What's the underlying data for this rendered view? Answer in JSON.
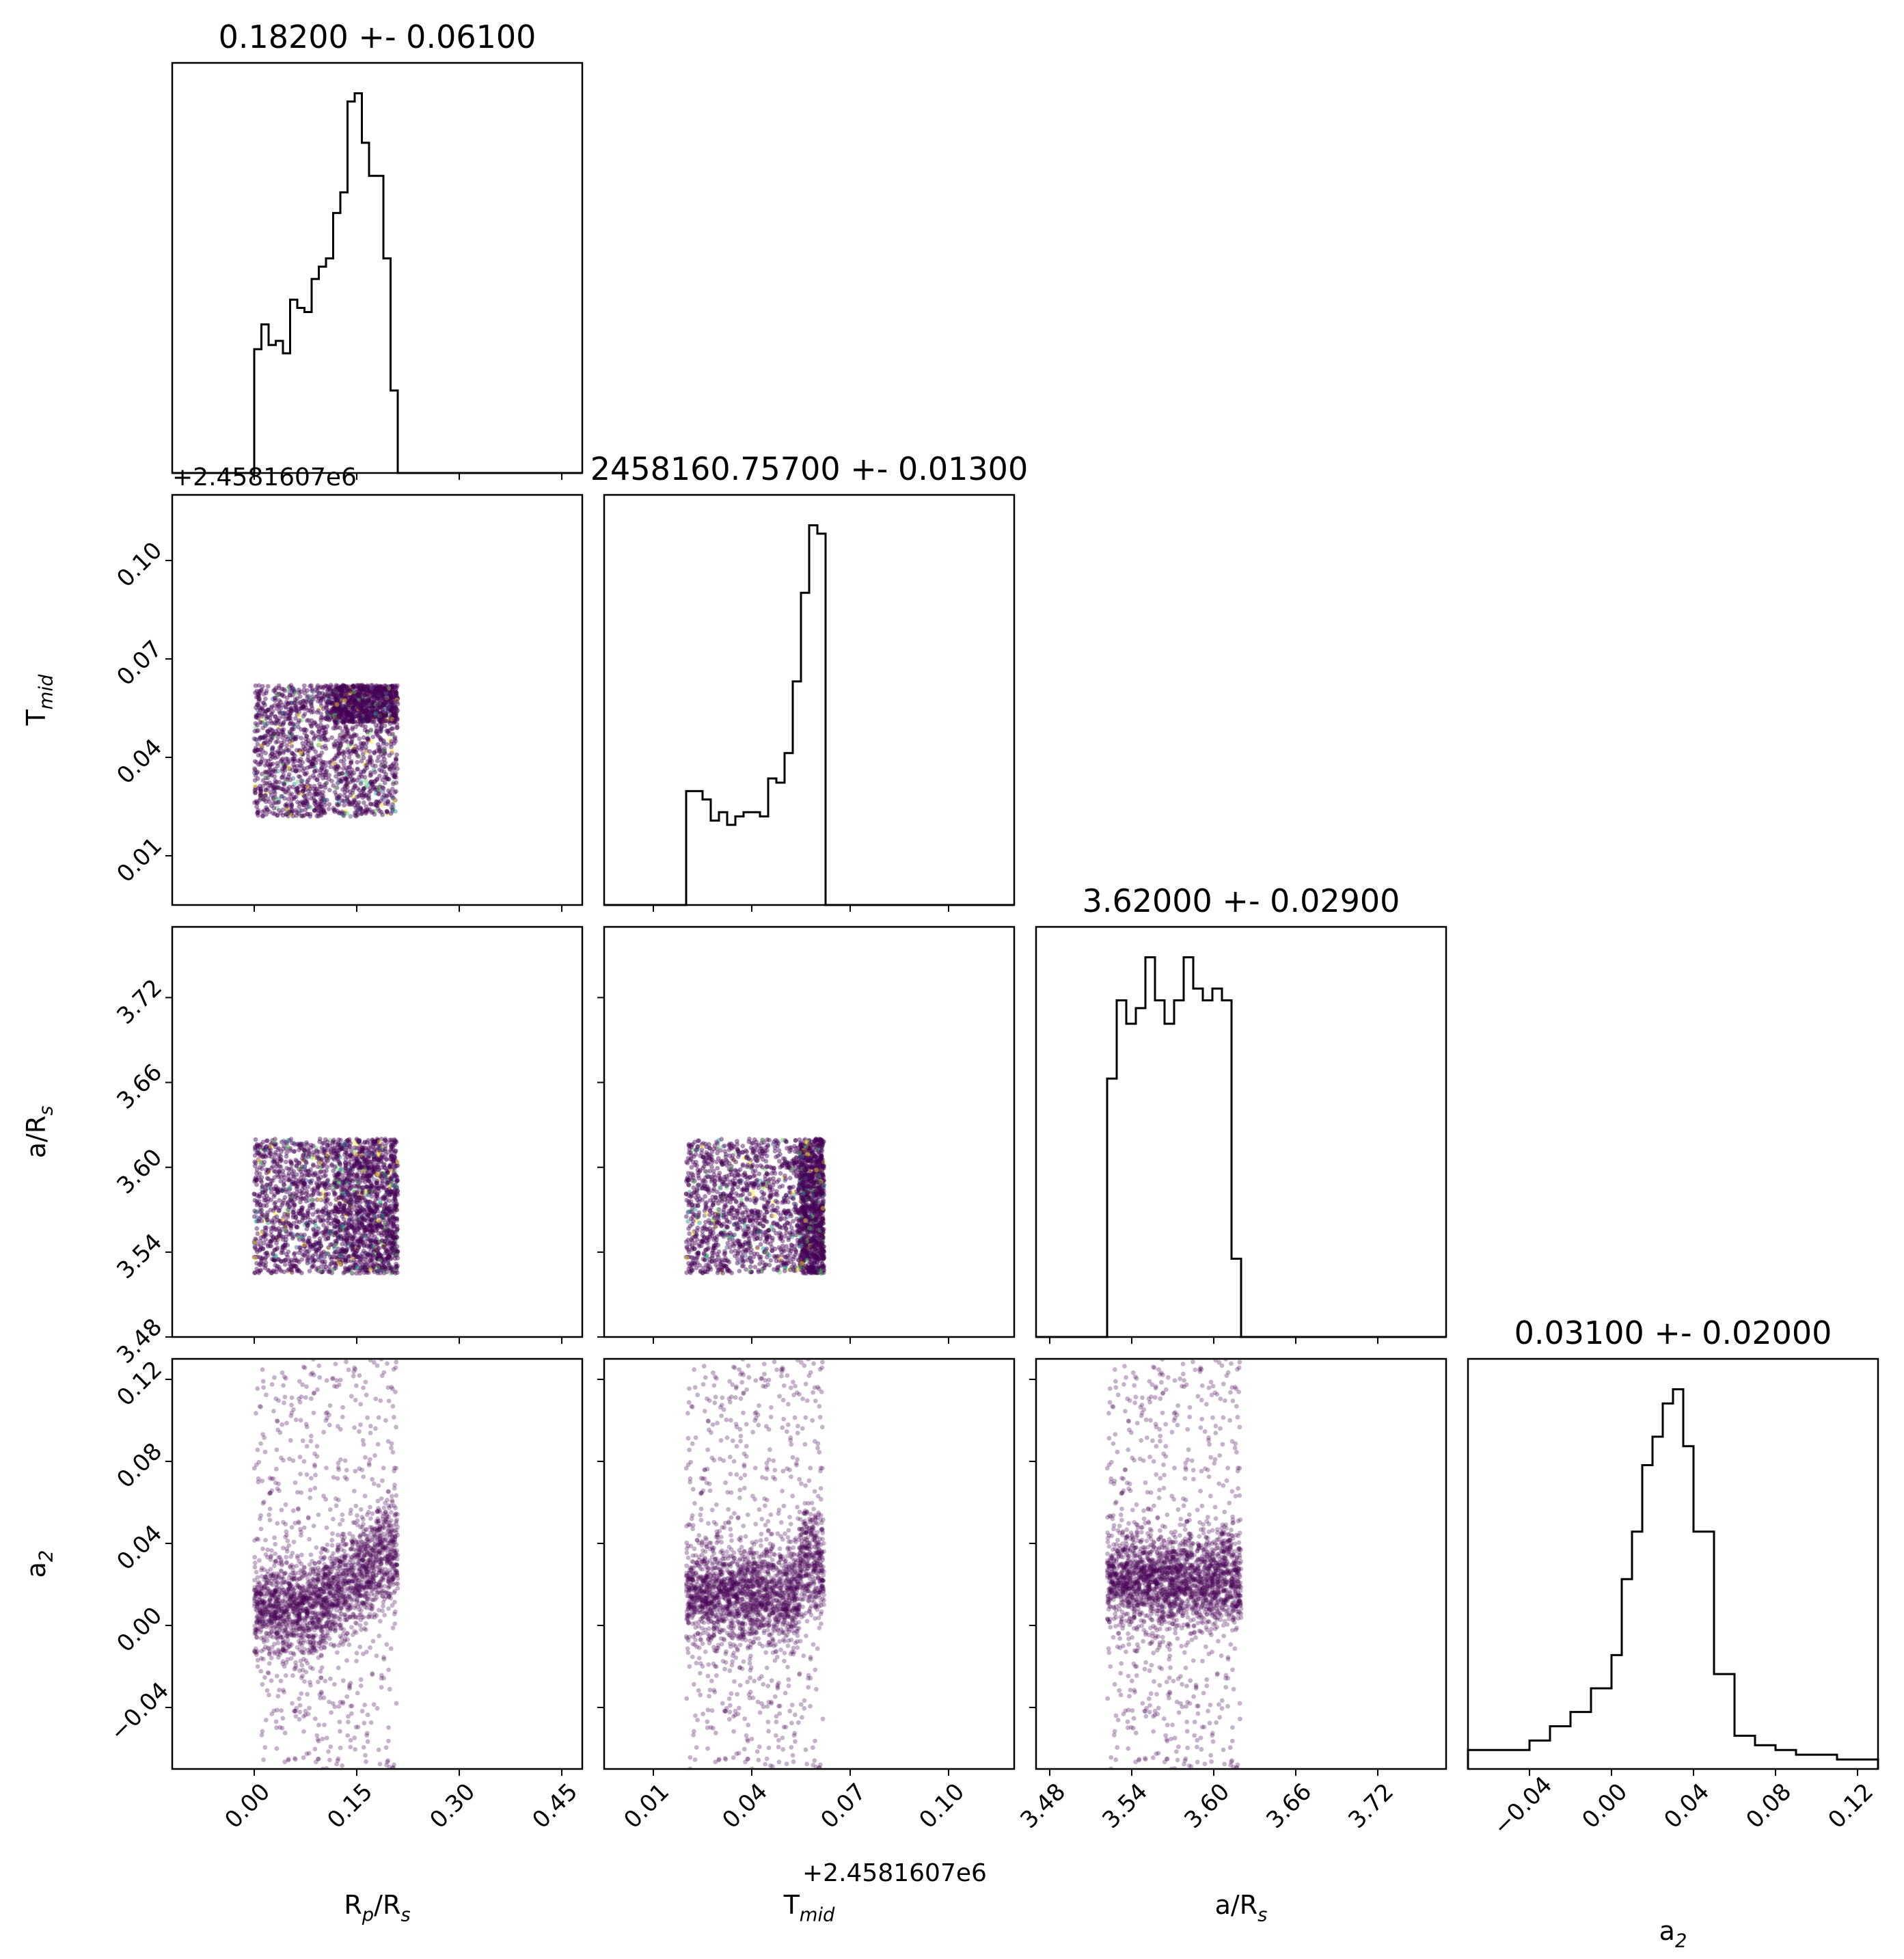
{
  "chart_data": [
    {
      "type": "histogram",
      "panel": "rp-rs-hist",
      "title": "0.18200 +- 0.06100",
      "x": [
        0.0,
        0.0105,
        0.021,
        0.0315,
        0.042,
        0.0525,
        0.063,
        0.0735,
        0.084,
        0.0945,
        0.105,
        0.1155,
        0.126,
        0.1365,
        0.147,
        0.1575,
        0.168,
        0.1785,
        0.189,
        0.1995,
        0.21
      ],
      "values": [
        30,
        36,
        31,
        32,
        29,
        42,
        40,
        39,
        47,
        50,
        52,
        63,
        68,
        90,
        92,
        80,
        72,
        72,
        52,
        20,
        0
      ],
      "xticks": [
        "0.00",
        "0.15",
        "0.30",
        "0.45"
      ],
      "xlim": [
        -0.12,
        0.48
      ],
      "xlabel": "R<sub>p</sub>/R<sub>s</sub>",
      "offset_text": "+2.4581607e6"
    },
    {
      "type": "histogram",
      "panel": "tmid-hist",
      "title": "2458160.75700 +- 0.01300",
      "x": [
        0.02,
        0.0225,
        0.025,
        0.0275,
        0.03,
        0.0325,
        0.035,
        0.0375,
        0.04,
        0.0425,
        0.045,
        0.0475,
        0.05,
        0.0525,
        0.055,
        0.0575,
        0.06
      ],
      "values": [
        27,
        27,
        25,
        20,
        22,
        19,
        21,
        22,
        22,
        21,
        30,
        29,
        36,
        53,
        74,
        90,
        88
      ],
      "xticks": [
        "0.01",
        "0.04",
        "0.07",
        "0.10"
      ],
      "xlim": [
        -0.005,
        0.12
      ],
      "xlabel": "T<sub>mid</sub>",
      "offset_text": "+2.4581607e6"
    },
    {
      "type": "histogram",
      "panel": "a-rs-hist",
      "title": "3.62000 +- 0.02900",
      "x": [
        3.522,
        3.529,
        3.536,
        3.543,
        3.55,
        3.557,
        3.564,
        3.571,
        3.578,
        3.585,
        3.592,
        3.599,
        3.606,
        3.613
      ],
      "values": [
        66,
        86,
        80,
        84,
        97,
        86,
        80,
        86,
        97,
        89,
        86,
        89,
        86,
        20
      ],
      "xticks": [
        "3.48",
        "3.54",
        "3.60",
        "3.66",
        "3.72"
      ],
      "xlim": [
        3.47,
        3.77
      ],
      "xlabel": "a/R<sub>s</sub>"
    },
    {
      "type": "histogram",
      "panel": "a2-hist",
      "title": "0.03100 +- 0.02000",
      "x": [
        -0.07,
        -0.06,
        -0.05,
        -0.04,
        -0.03,
        -0.02,
        -0.01,
        0.0,
        0.005,
        0.01,
        0.015,
        0.02,
        0.025,
        0.03,
        0.035,
        0.04,
        0.05,
        0.06,
        0.07,
        0.08,
        0.09,
        0.1,
        0.11,
        0.12
      ],
      "values": [
        4,
        4,
        4,
        6,
        9,
        12,
        17,
        24,
        40,
        50,
        64,
        70,
        77,
        80,
        68,
        50,
        20,
        7,
        5,
        4,
        3,
        3,
        2,
        2
      ],
      "xticks": [
        "−0.04",
        "0.00",
        "0.04",
        "0.08",
        "0.12"
      ],
      "xlim": [
        -0.07,
        0.13
      ],
      "xlabel": "a<sub>2</sub>"
    },
    {
      "type": "scatter",
      "panel": "rp-rs-vs-tmid",
      "x_range": [
        0.0,
        0.21
      ],
      "y_range": [
        0.022,
        0.062
      ],
      "xlim": [
        -0.12,
        0.48
      ],
      "ylim": [
        -0.005,
        0.12
      ],
      "yticks": [
        "0.01",
        "0.04",
        "0.07",
        "0.10"
      ],
      "ylabel": "T<sub>mid</sub>"
    },
    {
      "type": "scatter",
      "panel": "rp-rs-vs-a-rs",
      "x_range": [
        0.0,
        0.21
      ],
      "y_range": [
        3.525,
        3.62
      ],
      "xlim": [
        -0.12,
        0.48
      ],
      "ylim": [
        3.48,
        3.77
      ],
      "yticks": [
        "3.48",
        "3.54",
        "3.60",
        "3.66",
        "3.72"
      ],
      "ylabel": "a/R<sub>s</sub>"
    },
    {
      "type": "scatter",
      "panel": "tmid-vs-a-rs",
      "x_range": [
        0.02,
        0.062
      ],
      "y_range": [
        3.525,
        3.62
      ],
      "xlim": [
        -0.005,
        0.12
      ],
      "ylim": [
        3.48,
        3.77
      ]
    },
    {
      "type": "scatter",
      "panel": "rp-rs-vs-a2",
      "x_range": [
        0.0,
        0.21
      ],
      "y_range": [
        -0.07,
        0.13
      ],
      "xlim": [
        -0.12,
        0.48
      ],
      "ylim": [
        -0.07,
        0.13
      ],
      "yticks": [
        "−0.04",
        "0.00",
        "0.04",
        "0.08",
        "0.12"
      ],
      "ylabel": "a<sub>2</sub>"
    },
    {
      "type": "scatter",
      "panel": "tmid-vs-a2",
      "x_range": [
        0.02,
        0.062
      ],
      "y_range": [
        -0.07,
        0.13
      ],
      "xlim": [
        -0.005,
        0.12
      ],
      "ylim": [
        -0.07,
        0.13
      ]
    },
    {
      "type": "scatter",
      "panel": "a-rs-vs-a2",
      "x_range": [
        3.522,
        3.62
      ],
      "y_range": [
        -0.07,
        0.13
      ],
      "xlim": [
        3.47,
        3.77
      ],
      "ylim": [
        -0.07,
        0.13
      ]
    }
  ],
  "colors": {
    "line": "#000000",
    "points": "#440154",
    "points_accent": [
      "#21918c",
      "#fde725",
      "#5ec962",
      "#3b528b"
    ]
  }
}
